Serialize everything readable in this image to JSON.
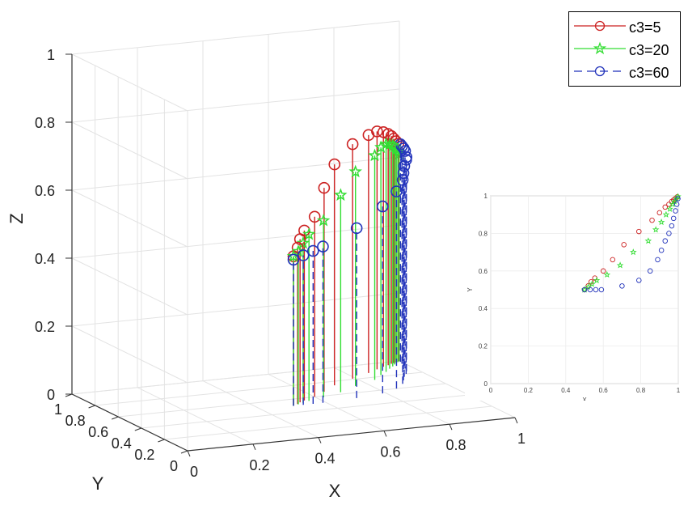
{
  "chart_data": [
    {
      "type": "stem3",
      "xlabel": "X",
      "ylabel": "Y",
      "zlabel": "Z",
      "xlim": [
        0,
        1
      ],
      "ylim": [
        0,
        1
      ],
      "zlim": [
        0,
        1
      ],
      "xticks": [
        "0",
        "0.2",
        "0.4",
        "0.6",
        "0.8",
        "1"
      ],
      "yticks": [
        "0",
        "0.2",
        "0.4",
        "0.6",
        "0.8",
        "1"
      ],
      "zticks": [
        "0",
        "0.2",
        "0.4",
        "0.6",
        "0.8",
        "1"
      ],
      "grid": true,
      "legend_position": "top-right",
      "series": [
        {
          "name": "c3=5",
          "color": "#cc2222",
          "marker": "circle",
          "line": "solid",
          "points": [
            {
              "x": 0.5,
              "y": 0.5,
              "z": 0.44
            },
            {
              "x": 0.52,
              "y": 0.521,
              "z": 0.46
            },
            {
              "x": 0.535,
              "y": 0.542,
              "z": 0.48
            },
            {
              "x": 0.555,
              "y": 0.562,
              "z": 0.5
            },
            {
              "x": 0.6,
              "y": 0.6,
              "z": 0.53
            },
            {
              "x": 0.65,
              "y": 0.66,
              "z": 0.6
            },
            {
              "x": 0.71,
              "y": 0.74,
              "z": 0.65
            },
            {
              "x": 0.79,
              "y": 0.81,
              "z": 0.69
            },
            {
              "x": 0.86,
              "y": 0.87,
              "z": 0.7
            },
            {
              "x": 0.9,
              "y": 0.91,
              "z": 0.7
            },
            {
              "x": 0.93,
              "y": 0.94,
              "z": 0.69
            },
            {
              "x": 0.95,
              "y": 0.955,
              "z": 0.68
            },
            {
              "x": 0.965,
              "y": 0.97,
              "z": 0.67
            },
            {
              "x": 0.975,
              "y": 0.978,
              "z": 0.66
            },
            {
              "x": 0.985,
              "y": 0.986,
              "z": 0.65
            },
            {
              "x": 0.995,
              "y": 0.995,
              "z": 0.64
            }
          ]
        },
        {
          "name": "c3=20",
          "color": "#33dd33",
          "marker": "pentagram",
          "line": "solid",
          "points": [
            {
              "x": 0.5,
              "y": 0.5,
              "z": 0.44
            },
            {
              "x": 0.52,
              "y": 0.515,
              "z": 0.45
            },
            {
              "x": 0.54,
              "y": 0.53,
              "z": 0.47
            },
            {
              "x": 0.565,
              "y": 0.55,
              "z": 0.49
            },
            {
              "x": 0.62,
              "y": 0.58,
              "z": 0.52
            },
            {
              "x": 0.69,
              "y": 0.63,
              "z": 0.58
            },
            {
              "x": 0.76,
              "y": 0.7,
              "z": 0.63
            },
            {
              "x": 0.84,
              "y": 0.76,
              "z": 0.66
            },
            {
              "x": 0.88,
              "y": 0.82,
              "z": 0.67
            },
            {
              "x": 0.91,
              "y": 0.86,
              "z": 0.67
            },
            {
              "x": 0.935,
              "y": 0.9,
              "z": 0.66
            },
            {
              "x": 0.955,
              "y": 0.93,
              "z": 0.65
            },
            {
              "x": 0.97,
              "y": 0.955,
              "z": 0.64
            },
            {
              "x": 0.98,
              "y": 0.97,
              "z": 0.63
            },
            {
              "x": 0.99,
              "y": 0.985,
              "z": 0.62
            },
            {
              "x": 0.998,
              "y": 0.996,
              "z": 0.61
            }
          ]
        },
        {
          "name": "c3=60",
          "color": "#2233bb",
          "marker": "circle",
          "line": "dashed",
          "points": [
            {
              "x": 0.5,
              "y": 0.5,
              "z": 0.43
            },
            {
              "x": 0.53,
              "y": 0.5,
              "z": 0.44
            },
            {
              "x": 0.56,
              "y": 0.5,
              "z": 0.45
            },
            {
              "x": 0.59,
              "y": 0.5,
              "z": 0.46
            },
            {
              "x": 0.7,
              "y": 0.52,
              "z": 0.5
            },
            {
              "x": 0.79,
              "y": 0.55,
              "z": 0.55
            },
            {
              "x": 0.85,
              "y": 0.6,
              "z": 0.58
            },
            {
              "x": 0.89,
              "y": 0.66,
              "z": 0.6
            },
            {
              "x": 0.91,
              "y": 0.71,
              "z": 0.61
            },
            {
              "x": 0.93,
              "y": 0.76,
              "z": 0.62
            },
            {
              "x": 0.95,
              "y": 0.8,
              "z": 0.63
            },
            {
              "x": 0.965,
              "y": 0.84,
              "z": 0.63
            },
            {
              "x": 0.975,
              "y": 0.88,
              "z": 0.64
            },
            {
              "x": 0.985,
              "y": 0.92,
              "z": 0.64
            },
            {
              "x": 0.992,
              "y": 0.955,
              "z": 0.64
            },
            {
              "x": 0.998,
              "y": 0.985,
              "z": 0.64
            }
          ]
        }
      ]
    },
    {
      "type": "scatter",
      "xlabel": "X",
      "ylabel": "Y",
      "xlim": [
        0,
        1
      ],
      "ylim": [
        0,
        1
      ],
      "xticks": [
        "0",
        "0.2",
        "0.4",
        "0.6",
        "0.8",
        "1"
      ],
      "yticks": [
        "0",
        "0.2",
        "0.4",
        "0.6",
        "0.8",
        "1"
      ],
      "grid": true,
      "series_source": "same x/y projections of the three series above"
    }
  ],
  "legend": {
    "items": [
      {
        "label": "c3=5",
        "color": "#cc2222",
        "marker": "circle",
        "dash": ""
      },
      {
        "label": "c3=20",
        "color": "#33dd33",
        "marker": "pentagram",
        "dash": ""
      },
      {
        "label": "c3=60",
        "color": "#2233bb",
        "marker": "circle",
        "dash": "10 6"
      }
    ]
  }
}
